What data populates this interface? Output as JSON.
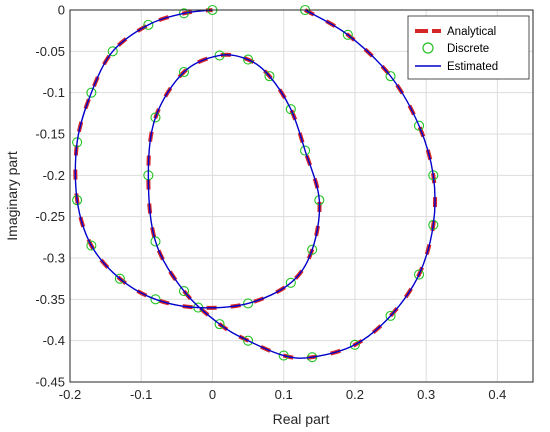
{
  "chart_data": {
    "type": "line",
    "title": "",
    "xlabel": "Real part",
    "ylabel": "Imaginary part",
    "xlim": [
      -0.2,
      0.45
    ],
    "ylim": [
      -0.45,
      0
    ],
    "x_ticks": [
      "-0.2",
      "-0.1",
      "0",
      "0.1",
      "0.2",
      "0.3",
      "0.4"
    ],
    "y_ticks": [
      "0",
      "-0.05",
      "-0.1",
      "-0.15",
      "-0.2",
      "-0.25",
      "-0.3",
      "-0.35",
      "-0.4",
      "-0.45"
    ],
    "grid": true,
    "legend_position": "top-right",
    "series": [
      {
        "name": "Analytical",
        "style": "thick dashed line",
        "color": "#d62728",
        "x": [
          0.13,
          0.19,
          0.25,
          0.29,
          0.31,
          0.31,
          0.29,
          0.25,
          0.2,
          0.14,
          0.1,
          0.05,
          0.01,
          -0.04,
          -0.08,
          -0.09,
          -0.08,
          -0.04,
          0.01,
          0.05,
          0.08,
          0.11,
          0.13,
          0.15,
          0.14,
          0.11,
          0.05,
          -0.02,
          -0.08,
          -0.13,
          -0.17,
          -0.19,
          -0.19,
          -0.17,
          -0.14,
          -0.09,
          -0.04,
          0.0
        ],
        "y": [
          0.0,
          -0.03,
          -0.08,
          -0.14,
          -0.2,
          -0.26,
          -0.32,
          -0.37,
          -0.405,
          -0.42,
          -0.418,
          -0.4,
          -0.38,
          -0.34,
          -0.28,
          -0.2,
          -0.13,
          -0.075,
          -0.055,
          -0.06,
          -0.08,
          -0.12,
          -0.17,
          -0.23,
          -0.29,
          -0.33,
          -0.355,
          -0.36,
          -0.35,
          -0.325,
          -0.285,
          -0.23,
          -0.16,
          -0.1,
          -0.05,
          -0.018,
          -0.004,
          0.0
        ]
      },
      {
        "name": "Discrete",
        "style": "hollow circle markers",
        "color": "#22c322",
        "x": [
          0.13,
          0.19,
          0.25,
          0.29,
          0.31,
          0.31,
          0.29,
          0.25,
          0.2,
          0.14,
          0.1,
          0.05,
          0.01,
          -0.04,
          -0.08,
          -0.09,
          -0.08,
          -0.04,
          0.01,
          0.05,
          0.08,
          0.11,
          0.13,
          0.15,
          0.14,
          0.11,
          0.05,
          -0.02,
          -0.08,
          -0.13,
          -0.17,
          -0.19,
          -0.19,
          -0.17,
          -0.14,
          -0.09,
          -0.04,
          0.0
        ],
        "y": [
          0.0,
          -0.03,
          -0.08,
          -0.14,
          -0.2,
          -0.26,
          -0.32,
          -0.37,
          -0.405,
          -0.42,
          -0.418,
          -0.4,
          -0.38,
          -0.34,
          -0.28,
          -0.2,
          -0.13,
          -0.075,
          -0.055,
          -0.06,
          -0.08,
          -0.12,
          -0.17,
          -0.23,
          -0.29,
          -0.33,
          -0.355,
          -0.36,
          -0.35,
          -0.325,
          -0.285,
          -0.23,
          -0.16,
          -0.1,
          -0.05,
          -0.018,
          -0.004,
          0.0
        ]
      },
      {
        "name": "Estimated",
        "style": "solid line",
        "color": "#0000cc",
        "x": [
          0.13,
          0.19,
          0.25,
          0.29,
          0.31,
          0.31,
          0.29,
          0.25,
          0.2,
          0.14,
          0.1,
          0.05,
          0.01,
          -0.04,
          -0.08,
          -0.09,
          -0.08,
          -0.04,
          0.01,
          0.05,
          0.08,
          0.11,
          0.13,
          0.15,
          0.14,
          0.11,
          0.05,
          -0.02,
          -0.08,
          -0.13,
          -0.17,
          -0.19,
          -0.19,
          -0.17,
          -0.14,
          -0.09,
          -0.04,
          0.0
        ],
        "y": [
          0.0,
          -0.03,
          -0.08,
          -0.14,
          -0.2,
          -0.26,
          -0.32,
          -0.37,
          -0.405,
          -0.42,
          -0.418,
          -0.4,
          -0.38,
          -0.34,
          -0.28,
          -0.2,
          -0.13,
          -0.075,
          -0.055,
          -0.06,
          -0.08,
          -0.12,
          -0.17,
          -0.23,
          -0.29,
          -0.33,
          -0.355,
          -0.36,
          -0.35,
          -0.325,
          -0.285,
          -0.23,
          -0.16,
          -0.1,
          -0.05,
          -0.018,
          -0.004,
          0.0
        ]
      }
    ]
  }
}
